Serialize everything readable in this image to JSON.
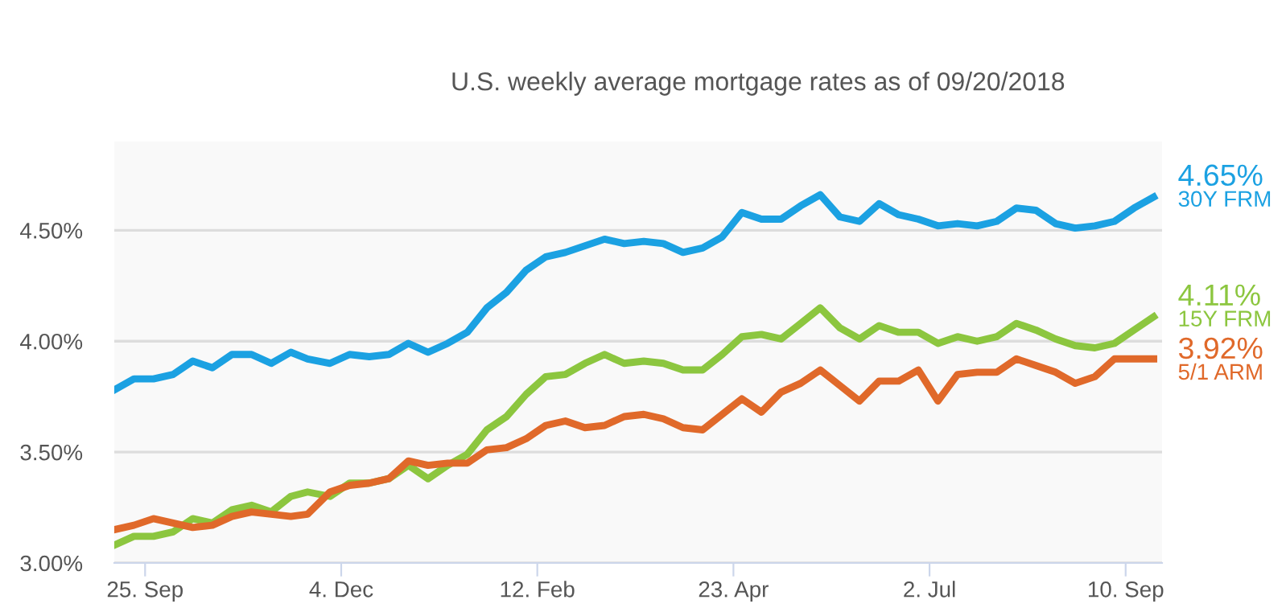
{
  "chart_data": {
    "type": "line",
    "subtitle": "U.S. weekly average mortgage rates as of 09/20/2018",
    "x": [
      "2017-09-14",
      "2017-09-21",
      "2017-09-28",
      "2017-10-05",
      "2017-10-12",
      "2017-10-19",
      "2017-10-26",
      "2017-11-02",
      "2017-11-09",
      "2017-11-16",
      "2017-11-22",
      "2017-11-30",
      "2017-12-07",
      "2017-12-14",
      "2017-12-21",
      "2017-12-28",
      "2018-01-04",
      "2018-01-11",
      "2018-01-18",
      "2018-01-25",
      "2018-02-01",
      "2018-02-08",
      "2018-02-15",
      "2018-02-22",
      "2018-03-01",
      "2018-03-08",
      "2018-03-15",
      "2018-03-22",
      "2018-03-29",
      "2018-04-05",
      "2018-04-12",
      "2018-04-19",
      "2018-04-26",
      "2018-05-03",
      "2018-05-10",
      "2018-05-17",
      "2018-05-24",
      "2018-05-31",
      "2018-06-07",
      "2018-06-14",
      "2018-06-21",
      "2018-06-28",
      "2018-07-05",
      "2018-07-12",
      "2018-07-19",
      "2018-07-26",
      "2018-08-02",
      "2018-08-09",
      "2018-08-16",
      "2018-08-23",
      "2018-08-30",
      "2018-09-06",
      "2018-09-13",
      "2018-09-20"
    ],
    "series": [
      {
        "name": "30Y FRM",
        "color": "#1ba1e2",
        "values": [
          3.78,
          3.83,
          3.83,
          3.85,
          3.91,
          3.88,
          3.94,
          3.94,
          3.9,
          3.95,
          3.92,
          3.9,
          3.94,
          3.93,
          3.94,
          3.99,
          3.95,
          3.99,
          4.04,
          4.15,
          4.22,
          4.32,
          4.38,
          4.4,
          4.43,
          4.46,
          4.44,
          4.45,
          4.44,
          4.4,
          4.42,
          4.47,
          4.58,
          4.55,
          4.55,
          4.61,
          4.66,
          4.56,
          4.54,
          4.62,
          4.57,
          4.55,
          4.52,
          4.53,
          4.52,
          4.54,
          4.6,
          4.59,
          4.53,
          4.51,
          4.52,
          4.54,
          4.6,
          4.65
        ],
        "value_labels": [
          null,
          null,
          null,
          null,
          null,
          null,
          null,
          null,
          null,
          null,
          null,
          null,
          null,
          null,
          null,
          null,
          null,
          null,
          null,
          null,
          null,
          null,
          null,
          null,
          null,
          null,
          null,
          null,
          null,
          null,
          null,
          null,
          null,
          null,
          null,
          null,
          null,
          null,
          null,
          null,
          null,
          null,
          null,
          null,
          null,
          null,
          null,
          null,
          null,
          null,
          null,
          null,
          null,
          "4.65%"
        ]
      },
      {
        "name": "15Y FRM",
        "color": "#8cc63f",
        "values": [
          3.08,
          3.12,
          3.12,
          3.14,
          3.2,
          3.18,
          3.24,
          3.26,
          3.23,
          3.3,
          3.32,
          3.3,
          3.36,
          3.36,
          3.38,
          3.44,
          3.38,
          3.44,
          3.49,
          3.6,
          3.66,
          3.76,
          3.84,
          3.85,
          3.9,
          3.94,
          3.9,
          3.91,
          3.9,
          3.87,
          3.87,
          3.94,
          4.02,
          4.03,
          4.01,
          4.08,
          4.15,
          4.06,
          4.01,
          4.07,
          4.04,
          4.04,
          3.99,
          4.02,
          4.0,
          4.02,
          4.08,
          4.05,
          4.01,
          3.98,
          3.97,
          3.99,
          4.05,
          4.11
        ],
        "value_labels": [
          null,
          null,
          null,
          null,
          null,
          null,
          null,
          null,
          null,
          null,
          null,
          null,
          null,
          null,
          null,
          null,
          null,
          null,
          null,
          null,
          null,
          null,
          null,
          null,
          null,
          null,
          null,
          null,
          null,
          null,
          null,
          null,
          null,
          null,
          null,
          null,
          null,
          null,
          null,
          null,
          null,
          null,
          null,
          null,
          null,
          null,
          null,
          null,
          null,
          null,
          null,
          null,
          null,
          "4.11%"
        ]
      },
      {
        "name": "5/1 ARM",
        "color": "#e0692a",
        "values": [
          3.15,
          3.17,
          3.2,
          3.18,
          3.16,
          3.17,
          3.21,
          3.23,
          3.22,
          3.21,
          3.22,
          3.32,
          3.35,
          3.36,
          3.38,
          3.46,
          3.44,
          3.45,
          3.45,
          3.51,
          3.52,
          3.56,
          3.62,
          3.64,
          3.61,
          3.62,
          3.66,
          3.67,
          3.65,
          3.61,
          3.6,
          3.67,
          3.74,
          3.68,
          3.77,
          3.81,
          3.87,
          3.8,
          3.73,
          3.82,
          3.82,
          3.87,
          3.73,
          3.85,
          3.86,
          3.86,
          3.92,
          3.89,
          3.86,
          3.81,
          3.84,
          3.92,
          3.92,
          3.92
        ],
        "value_labels": [
          null,
          null,
          null,
          null,
          null,
          null,
          null,
          null,
          null,
          null,
          null,
          null,
          null,
          null,
          null,
          null,
          null,
          null,
          null,
          null,
          null,
          null,
          null,
          null,
          null,
          null,
          null,
          null,
          null,
          null,
          null,
          null,
          null,
          null,
          null,
          null,
          null,
          null,
          null,
          null,
          null,
          null,
          null,
          null,
          null,
          null,
          null,
          null,
          null,
          null,
          null,
          null,
          null,
          "3.92%"
        ]
      }
    ],
    "xlim": [
      "2017-09-14",
      "2018-09-23"
    ],
    "xticks": [
      {
        "value": "2017-09-25",
        "label": "25. Sep"
      },
      {
        "value": "2017-12-04",
        "label": "4. Dec"
      },
      {
        "value": "2018-02-12",
        "label": "12. Feb"
      },
      {
        "value": "2018-04-23",
        "label": "23. Apr"
      },
      {
        "value": "2018-07-02",
        "label": "2. Jul"
      },
      {
        "value": "2018-09-10",
        "label": "10. Sep"
      }
    ],
    "ylim": [
      3.0,
      4.9
    ],
    "yticks": [
      {
        "value": 3.0,
        "label": "3.00%"
      },
      {
        "value": 3.5,
        "label": "3.50%"
      },
      {
        "value": 4.0,
        "label": "4.00%"
      },
      {
        "value": 4.5,
        "label": "4.50%"
      }
    ],
    "grid": "y",
    "legend": false,
    "marker": "none",
    "line_style": "solid"
  }
}
